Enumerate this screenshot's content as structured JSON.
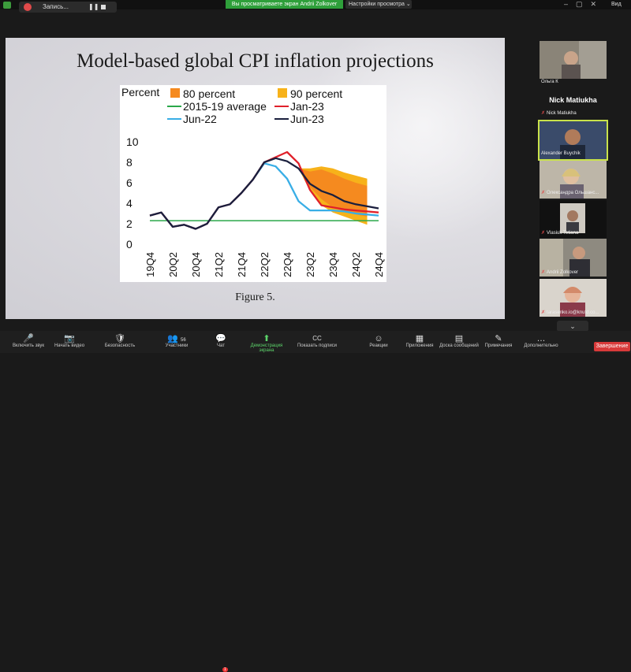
{
  "topbar": {
    "recording_label": "Запись...",
    "share_banner": "Вы просматриваете экран Andrii Zolkover",
    "view_options": "Настройки просмотра",
    "side_label": "Вид"
  },
  "slide": {
    "title": "Model-based global CPI inflation projections",
    "caption": "Figure 5."
  },
  "chart_data": {
    "type": "line",
    "ylabel": "Percent",
    "ylim": [
      0,
      10
    ],
    "yticks": [
      "0",
      "2",
      "4",
      "6",
      "8",
      "10"
    ],
    "xticks": [
      "19Q4",
      "20Q2",
      "20Q4",
      "21Q2",
      "21Q4",
      "22Q2",
      "22Q4",
      "23Q2",
      "23Q4",
      "24Q2",
      "24Q4"
    ],
    "x": [
      "19Q4",
      "20Q1",
      "20Q2",
      "20Q3",
      "20Q4",
      "21Q1",
      "21Q2",
      "21Q3",
      "21Q4",
      "22Q1",
      "22Q2",
      "22Q3",
      "22Q4",
      "23Q1",
      "23Q2",
      "23Q3",
      "23Q4",
      "24Q1",
      "24Q2",
      "24Q3",
      "24Q4"
    ],
    "legend": [
      "80 percent",
      "90 percent",
      "2015-19 average",
      "Jan-23",
      "Jun-22",
      "Jun-23"
    ],
    "colors": {
      "band80": "#f58a1f",
      "band90": "#f7b21a",
      "avg": "#2aa84a",
      "jan23": "#e0202a",
      "jun22": "#39aee6",
      "jun23": "#1a1f3d"
    },
    "average": 2.3,
    "series": [
      {
        "name": "Jun-22",
        "values": [
          2.8,
          3.1,
          1.7,
          1.9,
          1.5,
          2.0,
          3.6,
          3.9,
          5.0,
          6.3,
          7.9,
          7.6,
          6.4,
          4.2,
          3.3,
          3.3,
          3.3,
          3.2,
          3.0,
          2.9,
          2.8
        ]
      },
      {
        "name": "Jan-23",
        "values": [
          2.8,
          3.1,
          1.7,
          1.9,
          1.5,
          2.0,
          3.6,
          3.9,
          5.0,
          6.3,
          8.0,
          8.5,
          9.0,
          7.9,
          5.3,
          3.8,
          3.6,
          3.4,
          3.3,
          3.2,
          3.1
        ]
      },
      {
        "name": "Jun-23",
        "values": [
          2.8,
          3.1,
          1.7,
          1.9,
          1.5,
          2.0,
          3.6,
          3.9,
          5.0,
          6.3,
          8.0,
          8.4,
          8.1,
          7.4,
          5.9,
          5.2,
          4.8,
          4.2,
          3.9,
          3.7,
          3.5
        ]
      }
    ],
    "band80": {
      "start": "23Q1",
      "upper": [
        7.4,
        7.1,
        7.3,
        6.9,
        6.4,
        6.0,
        5.7
      ],
      "lower": [
        7.4,
        5.6,
        4.4,
        3.6,
        3.2,
        2.9,
        2.7
      ]
    },
    "band90": {
      "start": "23Q1",
      "upper": [
        7.4,
        7.4,
        7.6,
        7.4,
        7.0,
        6.7,
        6.4
      ],
      "lower": [
        7.4,
        5.2,
        3.8,
        3.1,
        2.7,
        2.3,
        1.9
      ]
    }
  },
  "participants": [
    {
      "name": "Ольга К",
      "muted": false
    },
    {
      "name": "Nick Matiukha",
      "muted": true,
      "big_label": "Nick Matiukha"
    },
    {
      "name": "Alexander Buychik",
      "muted": false,
      "active": true
    },
    {
      "name": "Олександра Ольшанс...",
      "muted": true
    },
    {
      "name": "Vlasiuk Tetiana",
      "muted": true
    },
    {
      "name": "Andrii Zolkover",
      "muted": true
    },
    {
      "name": "tarasenko.io@knutd.co...",
      "muted": true
    }
  ],
  "toolbar": {
    "items": [
      {
        "label": "Включить звук",
        "icon": "🎤"
      },
      {
        "label": "Начать видео",
        "icon": "📷"
      },
      {
        "label": "Безопасность",
        "icon": "🛡"
      },
      {
        "label": "Участники",
        "icon": "👥",
        "count": "56"
      },
      {
        "label": "Чат",
        "icon": "💬",
        "badge": "1"
      },
      {
        "label": "Демонстрация экрана",
        "icon": "⬆"
      },
      {
        "label": "Показать подписи",
        "icon": "CC"
      },
      {
        "label": "Реакции",
        "icon": "☺"
      },
      {
        "label": "Приложения",
        "icon": "▦"
      },
      {
        "label": "Доска сообщений",
        "icon": "▤"
      },
      {
        "label": "Примечания",
        "icon": "✎"
      },
      {
        "label": "Дополнительно",
        "icon": "…"
      }
    ],
    "end_label": "Завершение"
  }
}
